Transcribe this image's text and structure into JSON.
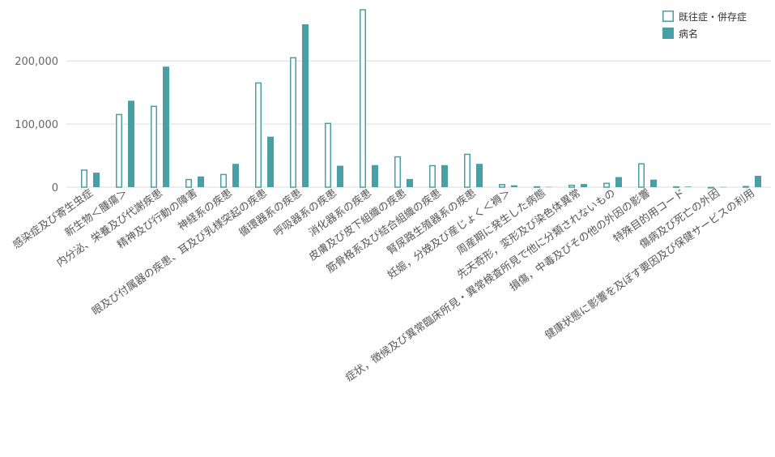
{
  "chart_data": {
    "type": "bar",
    "title": "",
    "xlabel": "",
    "ylabel": "",
    "ylim": [
      0,
      285000
    ],
    "yticks": [
      0,
      100000,
      200000
    ],
    "ytick_labels": [
      "0",
      "100,000",
      "200,000"
    ],
    "grid": "horizontal",
    "legend_position": "top-right",
    "categories": [
      "感染症及び寄生虫症",
      "新生物＜腫瘍＞",
      "内分泌、栄養及び代謝疾患",
      "精神及び行動の障害",
      "神経系の疾患",
      "眼及び付属器の疾患、耳及び乳様突起の疾患",
      "循環器系の疾患",
      "呼吸器系の疾患",
      "消化器系の疾患",
      "皮膚及び皮下組織の疾患",
      "筋骨格系及び結合組織の疾患",
      "腎尿路生殖器系の疾患",
      "妊娠，分娩及び産じょく＜褥＞",
      "周産期に発生した病態",
      "先天奇形，変形及び染色体異常",
      "症状，徴候及び異常臨床所見・異常検査所見で他に分類されないもの",
      "損傷，中毒及びその他の外因の影響",
      "特殊目的用コード",
      "傷病及び死亡の外因",
      "健康状態に影響を及ぼす要因及び保健サービスの利用"
    ],
    "series": [
      {
        "name": "既往症・併存症",
        "style": "outline",
        "values": [
          28000,
          116000,
          129000,
          13000,
          21000,
          166000,
          206000,
          102000,
          282000,
          49000,
          35000,
          53000,
          5000,
          1500,
          4000,
          7000,
          38000,
          1500,
          500,
          2000
        ]
      },
      {
        "name": "病名",
        "style": "filled",
        "values": [
          23000,
          137000,
          191000,
          17000,
          37000,
          80000,
          258000,
          34000,
          35000,
          13000,
          35000,
          37000,
          3000,
          500,
          5000,
          16000,
          12000,
          1000,
          300,
          18000
        ]
      }
    ],
    "colors": {
      "series": "#4a9fa5",
      "grid": "#dcdcdc",
      "tick_text": "#666666"
    }
  }
}
